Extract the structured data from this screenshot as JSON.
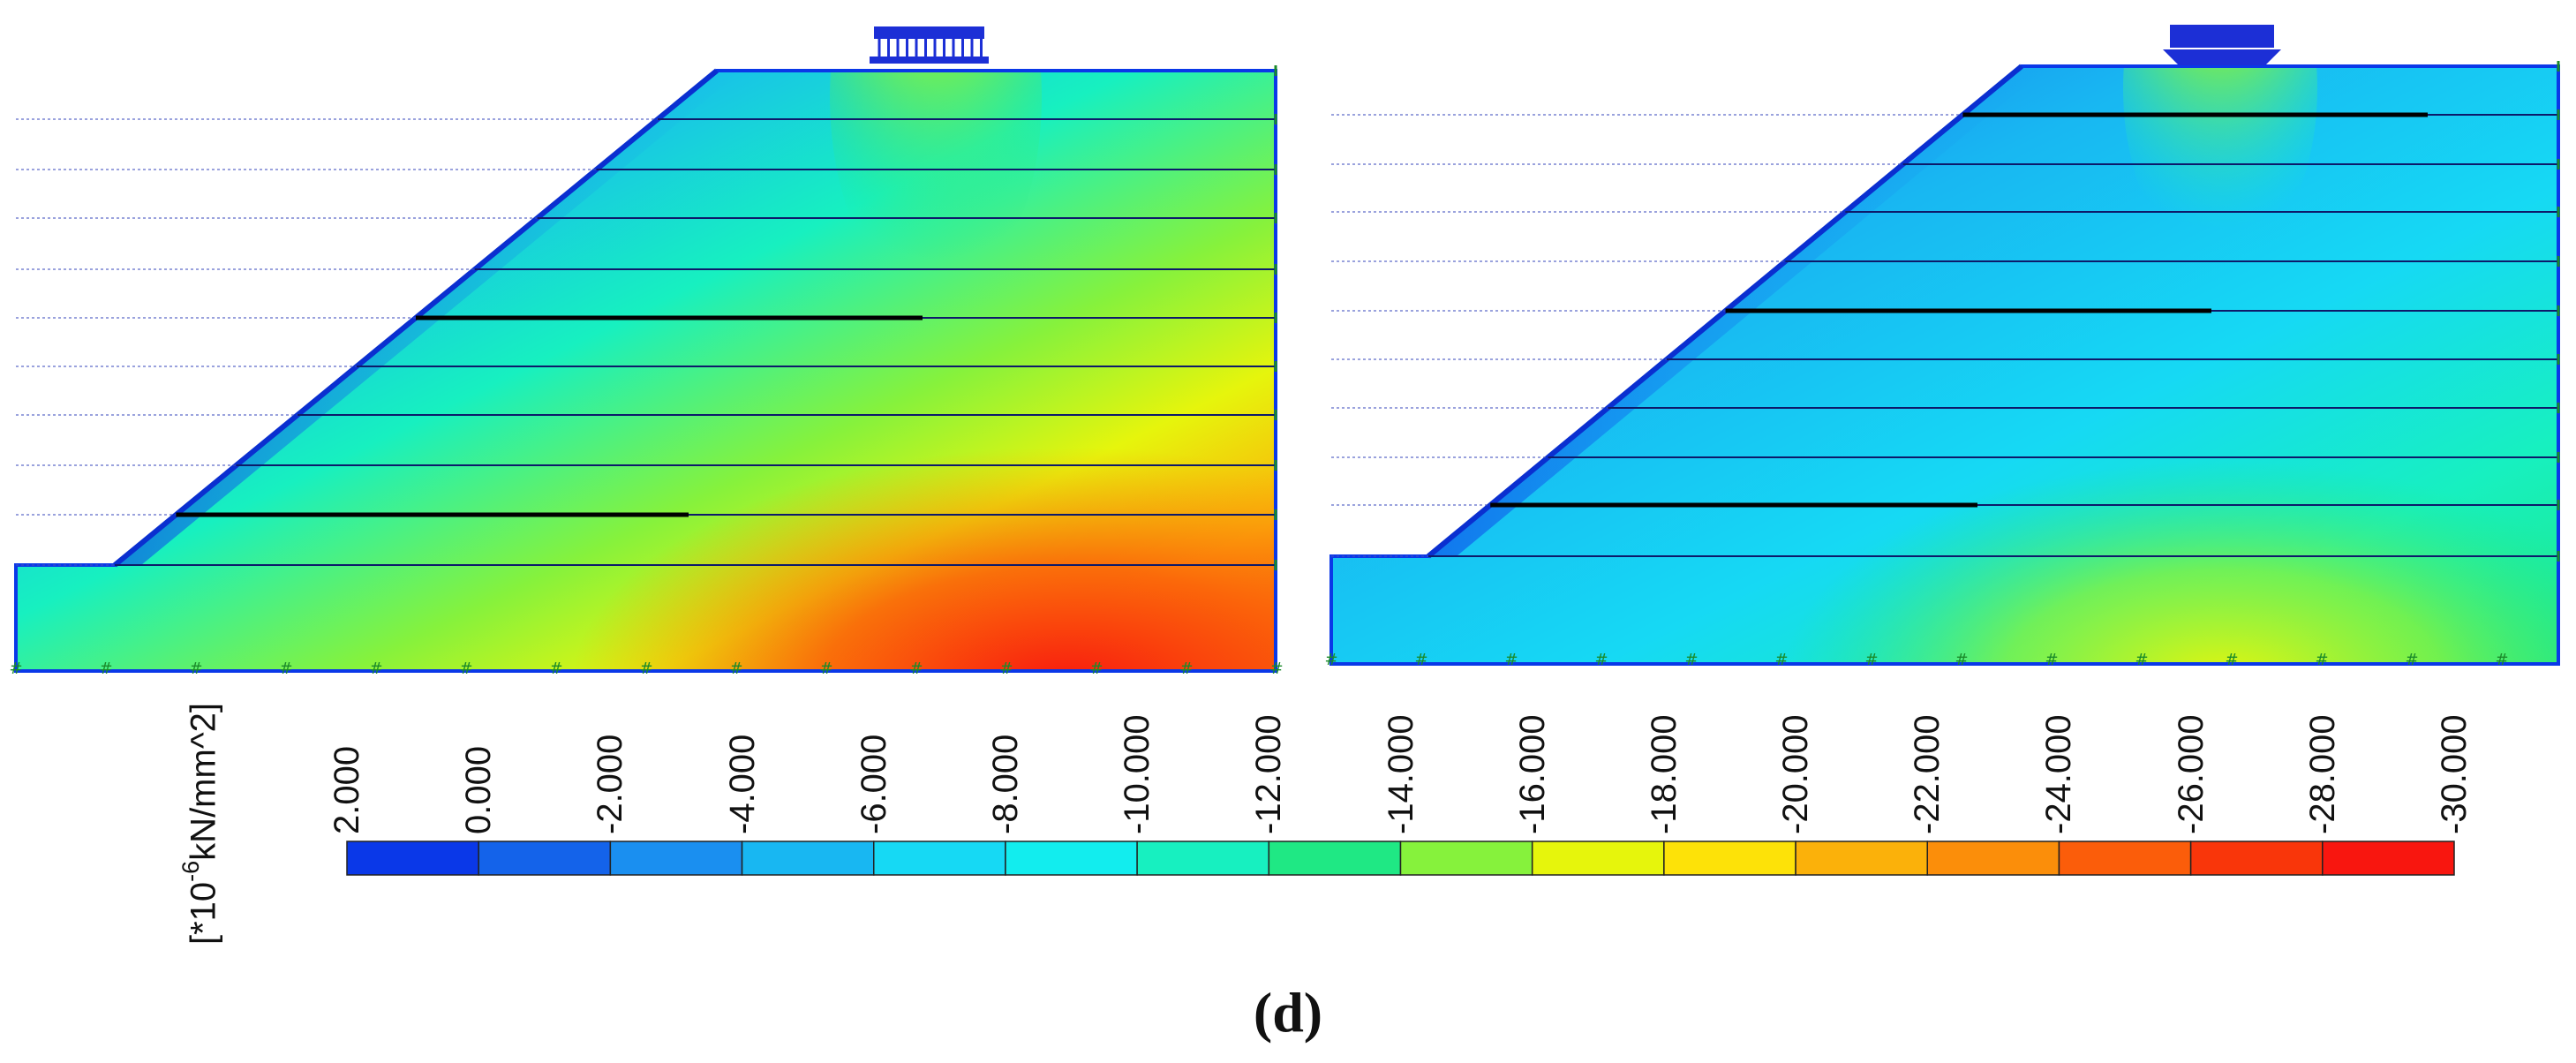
{
  "figure": {
    "caption": "(d)",
    "unit_label": {
      "prefix": "[*10",
      "exponent": "-6",
      "suffix": "kN/mm^2]"
    }
  },
  "panels": [
    {
      "name": "left"
    },
    {
      "name": "right"
    }
  ],
  "colorbar": {
    "ticks": [
      "2.000",
      "0.000",
      "-2.000",
      "-4.000",
      "-6.000",
      "-8.000",
      "-10.000",
      "-12.000",
      "-14.000",
      "-16.000",
      "-18.000",
      "-20.000",
      "-22.000",
      "-24.000",
      "-26.000",
      "-28.000",
      "-30.000"
    ],
    "colors": [
      "#0a38e8",
      "#1463ea",
      "#1a8ff0",
      "#18b7f2",
      "#16d9f4",
      "#12edee",
      "#17f0c0",
      "#1fe884",
      "#86f23c",
      "#e6f50c",
      "#fde208",
      "#fbb10a",
      "#fb8e0a",
      "#fb5d0a",
      "#f9360a",
      "#f8160f"
    ]
  }
}
